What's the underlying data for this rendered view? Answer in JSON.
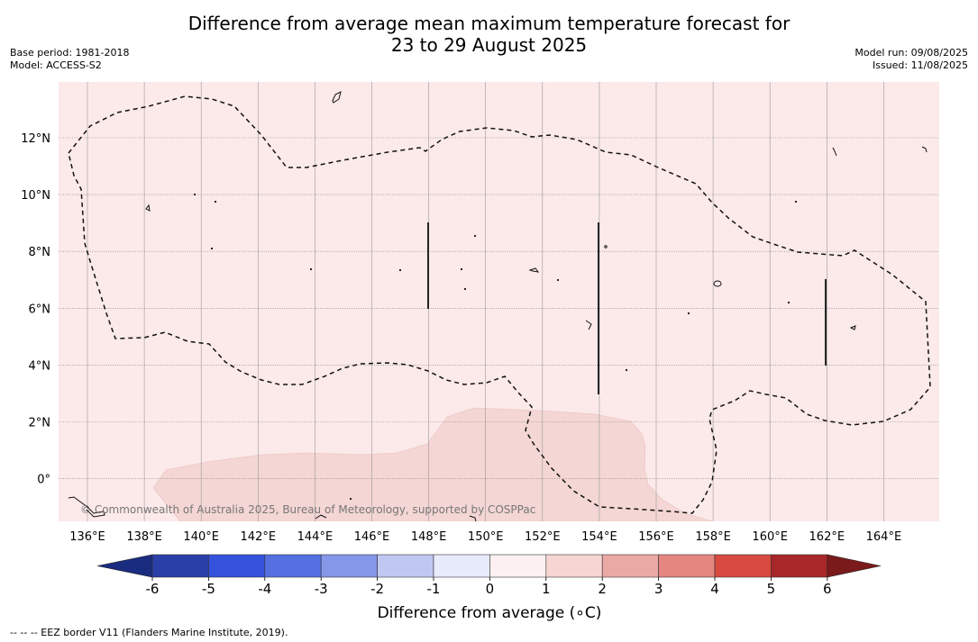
{
  "title_line1": "Difference from average mean maximum temperature forecast for",
  "title_line2": "23 to 29 August 2025",
  "base_period": "Base period: 1981-2018",
  "model": "Model: ACCESS-S2",
  "model_run": "Model run: 09/08/2025",
  "issued": "Issued: 11/08/2025",
  "copyright": "© Commonwealth of Australia 2025, Bureau of Meteorology, supported by COSPPac",
  "footnote": "--  --  -- EEZ border V11 (Flanders Marine Institute, 2019).",
  "colorbar_title": "Difference from average (∘C)",
  "colors": {
    "map_background": "#fce9e9",
    "warm_patch": "#f4d6d4",
    "grid": "#888888"
  },
  "axes": {
    "x_ticks": [
      "136°E",
      "138°E",
      "140°E",
      "142°E",
      "144°E",
      "146°E",
      "148°E",
      "150°E",
      "152°E",
      "154°E",
      "156°E",
      "158°E",
      "160°E",
      "162°E",
      "164°E"
    ],
    "y_ticks": [
      "12°N",
      "10°N",
      "8°N",
      "6°N",
      "4°N",
      "2°N",
      "0°"
    ]
  },
  "colorbar": {
    "labels": [
      "-6",
      "-5",
      "-4",
      "-3",
      "-2",
      "-1",
      "0",
      "1",
      "2",
      "3",
      "4",
      "5",
      "6"
    ],
    "colors": [
      "#2a3fa8",
      "#3452dc",
      "#5570e0",
      "#8497e8",
      "#c0c8f2",
      "#e8ebfb",
      "#fdf0f0",
      "#f6d5d3",
      "#eba9a6",
      "#e58680",
      "#d84a40",
      "#a8282a"
    ],
    "under_color": "#1a2c80",
    "over_color": "#7a1a1a"
  }
}
